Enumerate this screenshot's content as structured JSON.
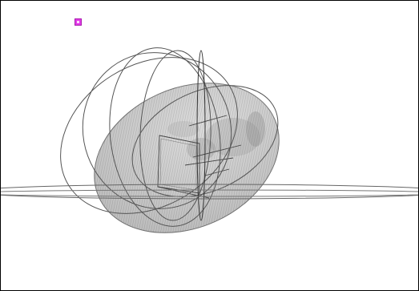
{
  "viewport": {
    "background": "#ffffff",
    "border_color": "#000000"
  },
  "marker": {
    "icon": "magenta-square-marker",
    "color": "#e23be8"
  },
  "model": {
    "body_fill": "#c9c9c9",
    "line_color": "#555555"
  }
}
